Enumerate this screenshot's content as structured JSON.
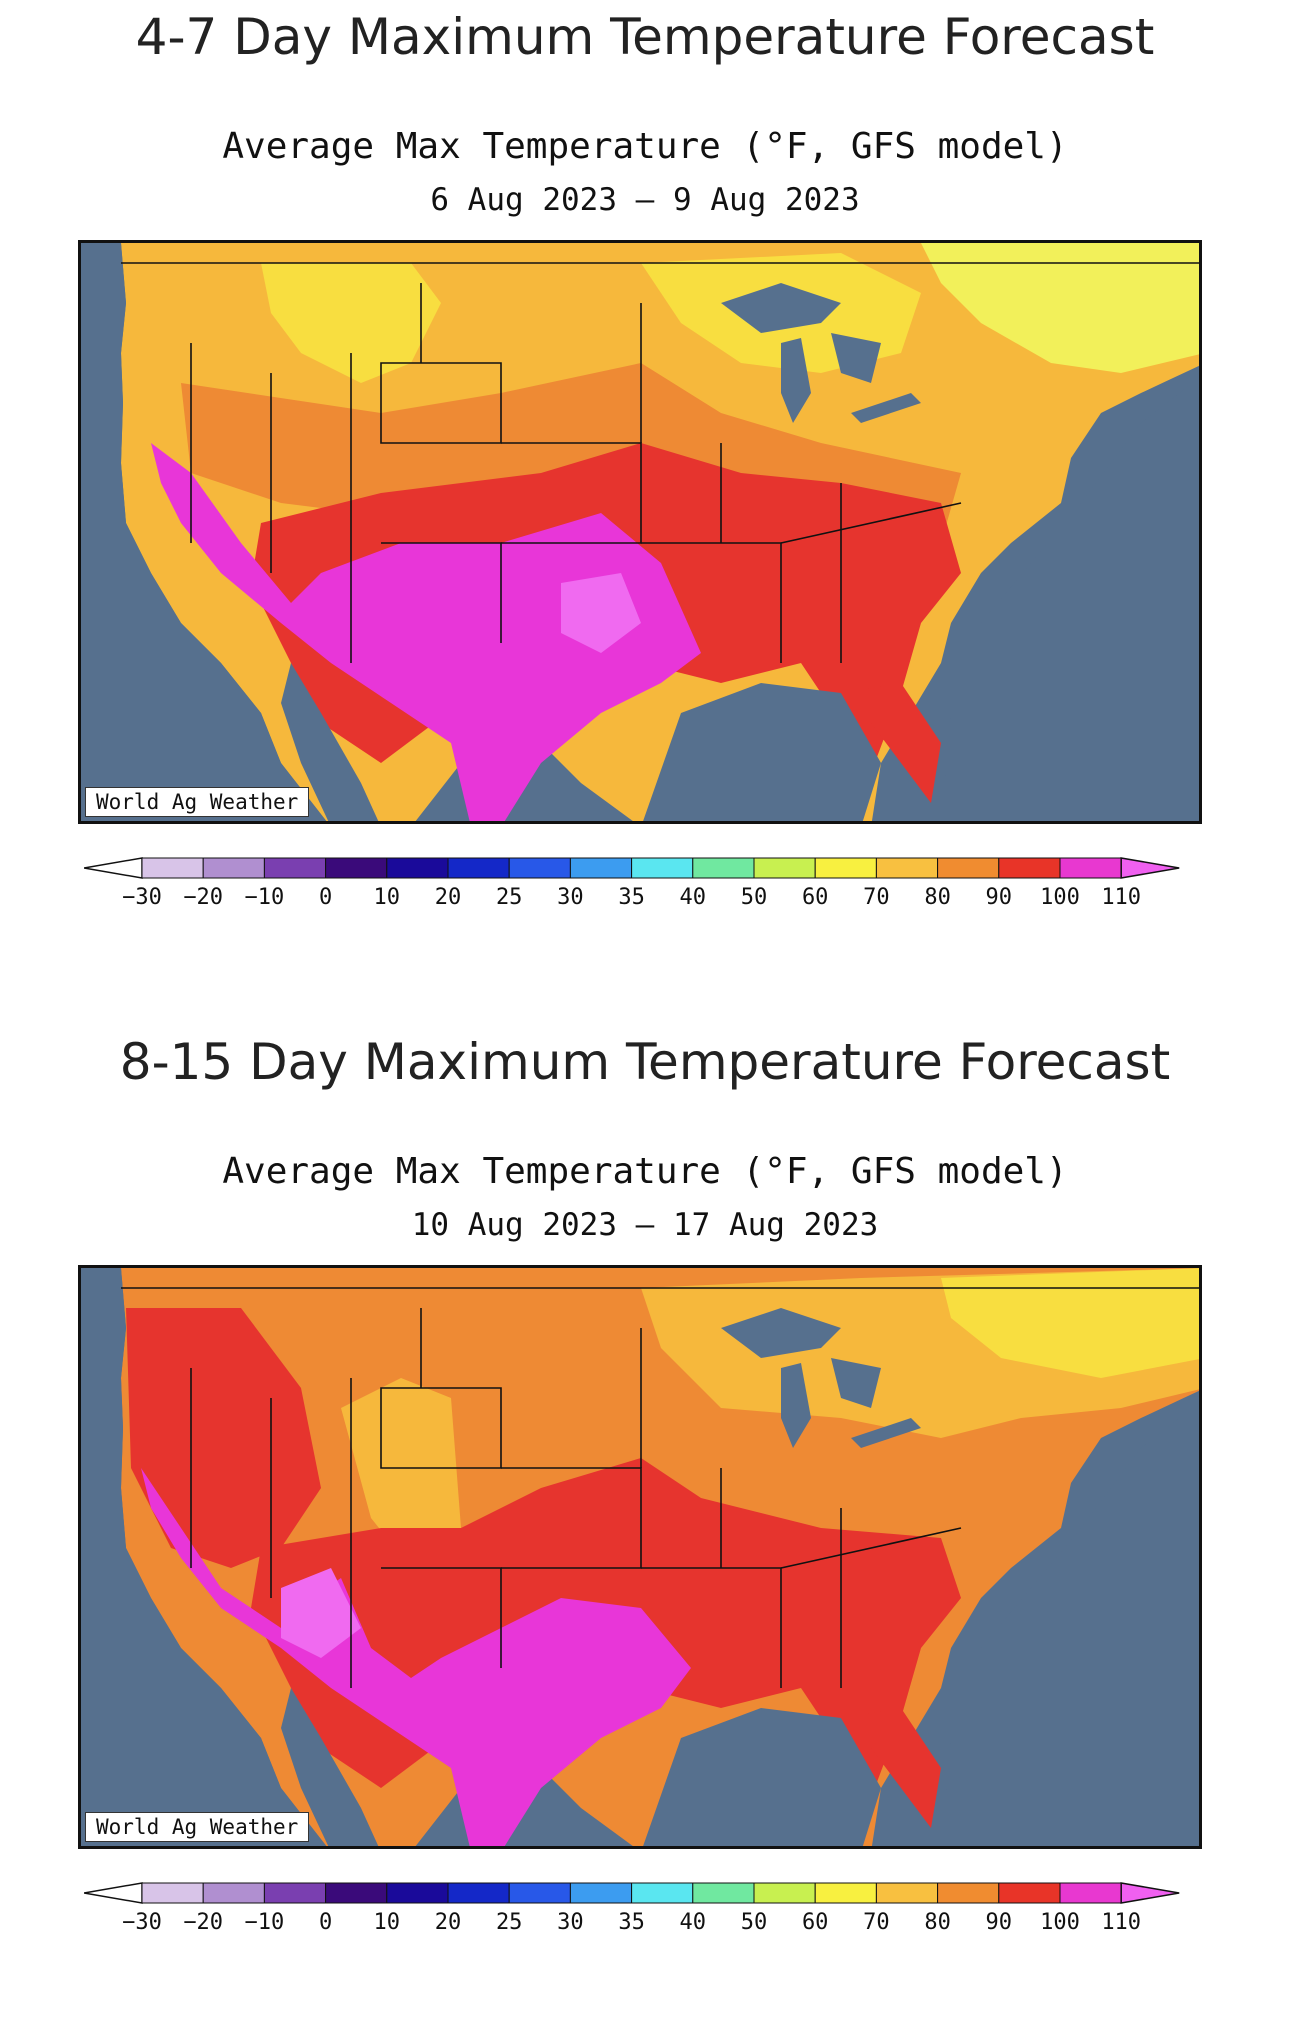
{
  "panels": [
    {
      "heading": "4-7 Day Maximum Temperature Forecast",
      "subtitle": "Average Max Temperature (°F, GFS model)",
      "date_range": "6 Aug 2023 – 9 Aug 2023",
      "watermark": "World Ag Weather"
    },
    {
      "heading": "8-15 Day Maximum Temperature Forecast",
      "subtitle": "Average Max Temperature (°F, GFS model)",
      "date_range": "10 Aug 2023 – 17 Aug 2023",
      "watermark": "World Ag Weather"
    }
  ],
  "legend": {
    "labels": [
      "−30",
      "−20",
      "−10",
      "0",
      "10",
      "20",
      "25",
      "30",
      "35",
      "40",
      "50",
      "60",
      "70",
      "80",
      "90",
      "100",
      "110"
    ],
    "colors": [
      "#ffffff",
      "#d8c4e8",
      "#b08fd0",
      "#7a3fb0",
      "#3a0a7a",
      "#1a0a9a",
      "#1428c8",
      "#2858e8",
      "#3c9cf0",
      "#5ae6f0",
      "#70e8a0",
      "#c8f050",
      "#f8f040",
      "#f8c040",
      "#f08c30",
      "#e83428",
      "#e838d0",
      "#f060f0"
    ]
  },
  "map_colors": {
    "ocean": "#56708e",
    "t60": "#f2f05a",
    "t70": "#f8de40",
    "t80": "#f6b83c",
    "t90": "#ee8a34",
    "t100": "#e6342e",
    "t110": "#e836d8",
    "t110plus": "#f06af0"
  }
}
